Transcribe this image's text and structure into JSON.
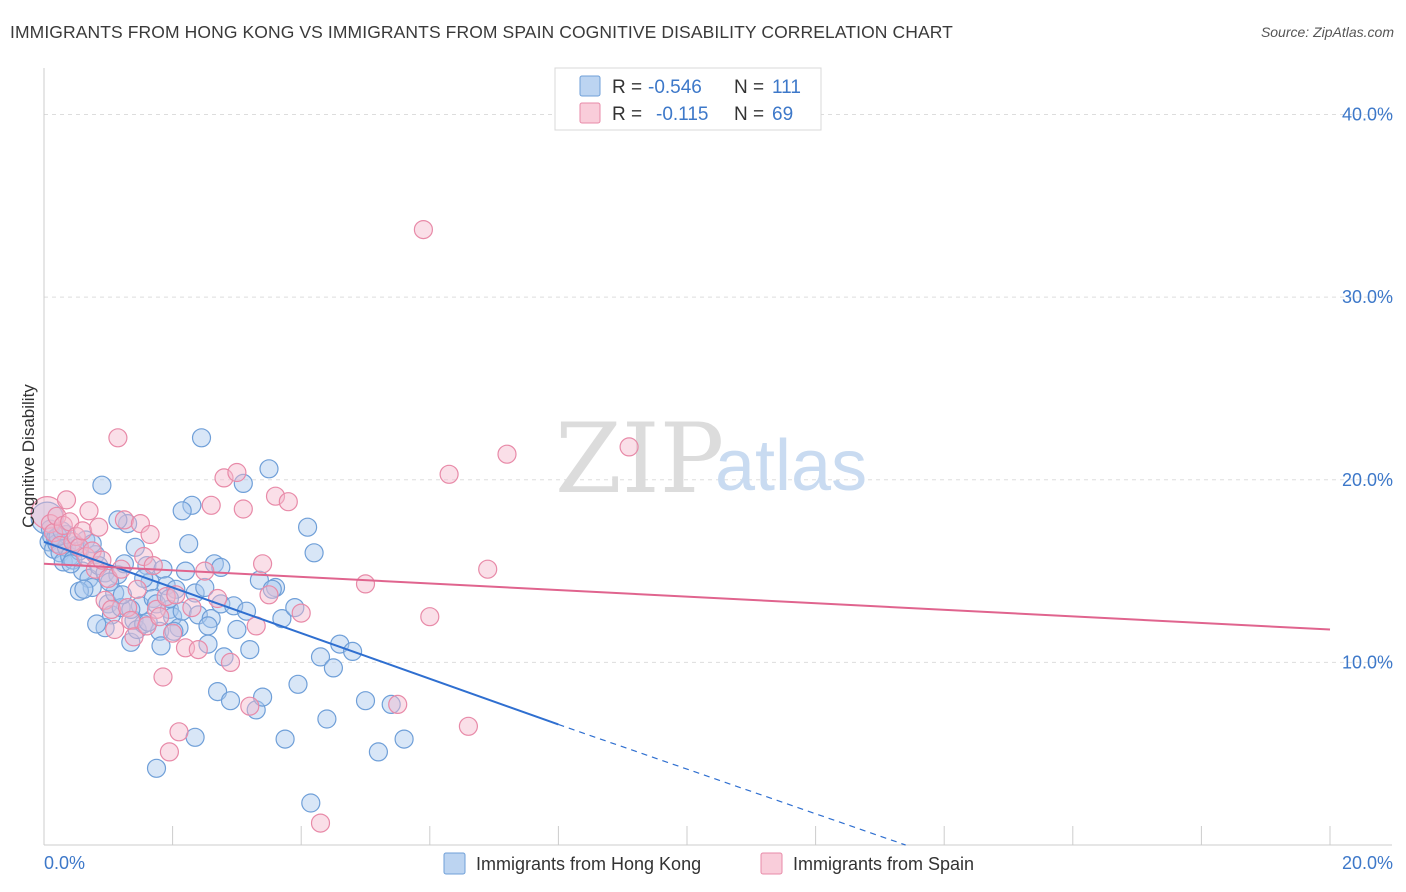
{
  "header": {
    "title": "IMMIGRANTS FROM HONG KONG VS IMMIGRANTS FROM SPAIN COGNITIVE DISABILITY CORRELATION CHART",
    "source": "Source: ZipAtlas.com"
  },
  "watermark": {
    "part1": "ZIP",
    "part2": "atlas"
  },
  "stats": {
    "rows": [
      {
        "r_label": "R =",
        "r_value": "-0.546",
        "n_label": "N =",
        "n_value": "111",
        "color": "#a9c8ee"
      },
      {
        "r_label": "R =",
        "r_value": "-0.115",
        "n_label": "N =",
        "n_value": "69",
        "color": "#f5b8cb"
      }
    ]
  },
  "colors": {
    "blue_fill": "#a9c8ee",
    "blue_stroke": "#6f9fd8",
    "blue_line": "#2f6fd0",
    "pink_fill": "#f5b8cb",
    "pink_stroke": "#e88aa8",
    "pink_line": "#e0648e",
    "axis_text": "#3d78c9",
    "grid": "#dddddd"
  },
  "chart_data": {
    "type": "scatter",
    "title": "IMMIGRANTS FROM HONG KONG VS IMMIGRANTS FROM SPAIN COGNITIVE DISABILITY CORRELATION CHART",
    "xlabel": "",
    "ylabel": "Cognitive Disability",
    "xlim": [
      0,
      20
    ],
    "ylim": [
      0,
      42
    ],
    "x_ticks": [
      0,
      20
    ],
    "x_tick_labels": [
      "0.0%",
      "20.0%"
    ],
    "y_ticks": [
      10,
      20,
      30,
      40
    ],
    "y_tick_labels": [
      "10.0%",
      "20.0%",
      "30.0%",
      "40.0%"
    ],
    "grid": true,
    "legend_position": "bottom",
    "series": [
      {
        "name": "Immigrants from Hong Kong",
        "color": "#a9c8ee",
        "regression": {
          "x_start": 0,
          "y_start": 16.6,
          "x_solid_end": 8.0,
          "y_solid_end": 6.6,
          "x_dash_end": 13.4,
          "y_dash_end": 0
        },
        "points": [
          [
            0.05,
            17.9
          ],
          [
            0.08,
            16.6
          ],
          [
            0.1,
            17.3
          ],
          [
            0.12,
            16.9
          ],
          [
            0.15,
            16.2
          ],
          [
            0.18,
            16.8
          ],
          [
            0.2,
            16.5
          ],
          [
            0.25,
            16.0
          ],
          [
            0.3,
            15.5
          ],
          [
            0.35,
            16.3
          ],
          [
            0.4,
            15.8
          ],
          [
            0.45,
            15.6
          ],
          [
            0.5,
            16.4
          ],
          [
            0.55,
            16.1
          ],
          [
            0.6,
            15.0
          ],
          [
            0.65,
            16.7
          ],
          [
            0.7,
            14.6
          ],
          [
            0.75,
            14.1
          ],
          [
            0.8,
            15.9
          ],
          [
            0.85,
            15.3
          ],
          [
            0.9,
            19.7
          ],
          [
            0.95,
            14.9
          ],
          [
            1.0,
            13.2
          ],
          [
            1.05,
            12.6
          ],
          [
            1.1,
            13.8
          ],
          [
            1.15,
            14.8
          ],
          [
            1.2,
            13.0
          ],
          [
            1.25,
            15.4
          ],
          [
            1.3,
            17.6
          ],
          [
            1.35,
            11.1
          ],
          [
            1.4,
            12.3
          ],
          [
            1.45,
            11.8
          ],
          [
            1.5,
            13.1
          ],
          [
            1.55,
            12.1
          ],
          [
            1.6,
            15.3
          ],
          [
            1.65,
            14.4
          ],
          [
            1.7,
            13.5
          ],
          [
            1.75,
            13.2
          ],
          [
            1.8,
            11.7
          ],
          [
            1.85,
            15.1
          ],
          [
            1.9,
            14.2
          ],
          [
            1.95,
            12.9
          ],
          [
            2.0,
            12.5
          ],
          [
            2.05,
            14.0
          ],
          [
            2.1,
            11.9
          ],
          [
            2.15,
            12.8
          ],
          [
            2.2,
            15.0
          ],
          [
            2.25,
            16.5
          ],
          [
            2.3,
            18.6
          ],
          [
            2.35,
            13.8
          ],
          [
            2.4,
            12.6
          ],
          [
            2.45,
            22.3
          ],
          [
            2.5,
            14.1
          ],
          [
            2.55,
            11.0
          ],
          [
            2.6,
            12.4
          ],
          [
            2.65,
            15.4
          ],
          [
            2.7,
            8.4
          ],
          [
            2.75,
            13.2
          ],
          [
            2.8,
            10.3
          ],
          [
            2.9,
            7.9
          ],
          [
            3.0,
            11.8
          ],
          [
            3.1,
            19.8
          ],
          [
            3.2,
            10.7
          ],
          [
            3.3,
            7.4
          ],
          [
            3.4,
            8.1
          ],
          [
            3.5,
            20.6
          ],
          [
            3.6,
            14.1
          ],
          [
            3.7,
            12.4
          ],
          [
            3.9,
            13.0
          ],
          [
            4.1,
            17.4
          ],
          [
            4.2,
            16.0
          ],
          [
            4.3,
            10.3
          ],
          [
            4.4,
            6.9
          ],
          [
            4.5,
            9.7
          ],
          [
            4.6,
            11.0
          ],
          [
            4.8,
            10.6
          ],
          [
            5.0,
            7.9
          ],
          [
            5.2,
            5.1
          ],
          [
            5.4,
            7.7
          ],
          [
            5.6,
            5.8
          ],
          [
            0.35,
            17.0
          ],
          [
            0.55,
            13.9
          ],
          [
            0.75,
            16.5
          ],
          [
            0.95,
            11.9
          ],
          [
            1.15,
            17.8
          ],
          [
            1.35,
            12.9
          ],
          [
            1.55,
            14.6
          ],
          [
            1.75,
            4.2
          ],
          [
            1.95,
            13.5
          ],
          [
            2.15,
            18.3
          ],
          [
            2.35,
            5.9
          ],
          [
            2.55,
            12.0
          ],
          [
            2.75,
            15.2
          ],
          [
            2.95,
            13.1
          ],
          [
            3.15,
            12.8
          ],
          [
            3.35,
            14.5
          ],
          [
            3.55,
            14.0
          ],
          [
            3.75,
            5.8
          ],
          [
            3.95,
            8.8
          ],
          [
            4.15,
            2.3
          ],
          [
            0.22,
            16.9
          ],
          [
            0.42,
            15.4
          ],
          [
            0.62,
            14.0
          ],
          [
            0.82,
            12.1
          ],
          [
            1.02,
            14.4
          ],
          [
            1.22,
            13.7
          ],
          [
            1.42,
            16.3
          ],
          [
            1.62,
            12.2
          ],
          [
            1.82,
            10.9
          ],
          [
            2.02,
            11.7
          ],
          [
            0.28,
            17.2
          ]
        ]
      },
      {
        "name": "Immigrants from Spain",
        "color": "#f5b8cb",
        "regression": {
          "x_start": 0,
          "y_start": 15.4,
          "x_end": 20,
          "y_end": 11.8
        },
        "points": [
          [
            0.05,
            18.2
          ],
          [
            0.1,
            17.6
          ],
          [
            0.15,
            17.1
          ],
          [
            0.2,
            18.0
          ],
          [
            0.25,
            16.4
          ],
          [
            0.3,
            17.5
          ],
          [
            0.35,
            18.9
          ],
          [
            0.4,
            17.7
          ],
          [
            0.45,
            16.6
          ],
          [
            0.5,
            16.9
          ],
          [
            0.55,
            16.3
          ],
          [
            0.6,
            17.2
          ],
          [
            0.65,
            15.8
          ],
          [
            0.7,
            18.3
          ],
          [
            0.75,
            16.1
          ],
          [
            0.8,
            15.1
          ],
          [
            0.85,
            17.4
          ],
          [
            0.9,
            15.6
          ],
          [
            0.95,
            13.4
          ],
          [
            1.0,
            14.6
          ],
          [
            1.05,
            12.9
          ],
          [
            1.1,
            11.8
          ],
          [
            1.15,
            22.3
          ],
          [
            1.2,
            15.1
          ],
          [
            1.25,
            17.8
          ],
          [
            1.3,
            13.0
          ],
          [
            1.35,
            12.3
          ],
          [
            1.4,
            11.4
          ],
          [
            1.45,
            14.0
          ],
          [
            1.5,
            17.6
          ],
          [
            1.55,
            15.8
          ],
          [
            1.6,
            12.0
          ],
          [
            1.65,
            17.0
          ],
          [
            1.7,
            15.3
          ],
          [
            1.75,
            12.9
          ],
          [
            1.8,
            12.5
          ],
          [
            1.85,
            9.2
          ],
          [
            1.9,
            13.6
          ],
          [
            1.95,
            5.1
          ],
          [
            2.0,
            11.6
          ],
          [
            2.05,
            13.7
          ],
          [
            2.1,
            6.2
          ],
          [
            2.2,
            10.8
          ],
          [
            2.3,
            13.0
          ],
          [
            2.4,
            10.7
          ],
          [
            2.5,
            15.0
          ],
          [
            2.6,
            18.6
          ],
          [
            2.7,
            13.5
          ],
          [
            2.8,
            20.1
          ],
          [
            2.9,
            10.0
          ],
          [
            3.0,
            20.4
          ],
          [
            3.1,
            18.4
          ],
          [
            3.2,
            7.6
          ],
          [
            3.3,
            12.0
          ],
          [
            3.4,
            15.4
          ],
          [
            3.5,
            13.7
          ],
          [
            3.6,
            19.1
          ],
          [
            3.8,
            18.8
          ],
          [
            4.0,
            12.7
          ],
          [
            4.3,
            1.2
          ],
          [
            5.0,
            14.3
          ],
          [
            5.5,
            7.7
          ],
          [
            5.9,
            33.7
          ],
          [
            6.0,
            12.5
          ],
          [
            6.3,
            20.3
          ],
          [
            6.6,
            6.5
          ],
          [
            6.9,
            15.1
          ],
          [
            7.2,
            21.4
          ],
          [
            9.1,
            21.8
          ]
        ]
      }
    ]
  },
  "legend": {
    "items": [
      {
        "label": "Immigrants from Hong Kong",
        "color": "#a9c8ee"
      },
      {
        "label": "Immigrants from Spain",
        "color": "#f5b8cb"
      }
    ]
  }
}
